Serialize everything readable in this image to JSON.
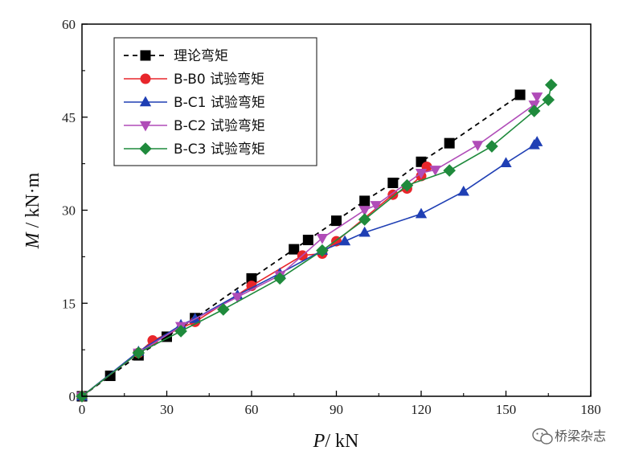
{
  "watermark": {
    "text": "桥梁杂志",
    "icon": "wechat-icon"
  },
  "chart_data": {
    "type": "line",
    "title": "",
    "xlabel": {
      "var": "P",
      "unit": "/ kN"
    },
    "ylabel": {
      "var": "M",
      "unit": " / kN·m"
    },
    "xlim": [
      0,
      180
    ],
    "ylim": [
      0,
      60
    ],
    "xticks": [
      0,
      30,
      60,
      90,
      120,
      150,
      180
    ],
    "yticks": [
      0,
      15,
      30,
      45,
      60
    ],
    "grid": false,
    "legend_position": "top-left",
    "series": [
      {
        "name": "理论弯矩",
        "color": "#000000",
        "marker": "square",
        "line": "dashed",
        "points": [
          [
            0,
            0
          ],
          [
            10,
            3.3
          ],
          [
            20,
            6.6
          ],
          [
            30,
            9.6
          ],
          [
            40,
            12.6
          ],
          [
            60,
            19
          ],
          [
            75,
            23.7
          ],
          [
            80,
            25.2
          ],
          [
            90,
            28.3
          ],
          [
            100,
            31.5
          ],
          [
            110,
            34.4
          ],
          [
            120,
            37.8
          ],
          [
            130,
            40.8
          ],
          [
            155,
            48.6
          ]
        ]
      },
      {
        "name": "B-B0 试验弯矩",
        "color": "#e8262b",
        "marker": "circle",
        "line": "solid",
        "points": [
          [
            0,
            0
          ],
          [
            20,
            7
          ],
          [
            25,
            9
          ],
          [
            40,
            12
          ],
          [
            60,
            17.8
          ],
          [
            78,
            22.7
          ],
          [
            85,
            23
          ],
          [
            90,
            25
          ],
          [
            110,
            32.5
          ],
          [
            115,
            33.5
          ],
          [
            120,
            35.5
          ],
          [
            122,
            37
          ]
        ]
      },
      {
        "name": "B-C1 试验弯矩",
        "color": "#1f3fb4",
        "marker": "triangle-up",
        "line": "solid",
        "points": [
          [
            0,
            0
          ],
          [
            20,
            7.2
          ],
          [
            35,
            11.5
          ],
          [
            40,
            12.5
          ],
          [
            55,
            16.3
          ],
          [
            70,
            19.8
          ],
          [
            85,
            23.5
          ],
          [
            93,
            25
          ],
          [
            100,
            26.4
          ],
          [
            120,
            29.4
          ],
          [
            135,
            33
          ],
          [
            150,
            37.6
          ],
          [
            160,
            40.5
          ],
          [
            161,
            41
          ]
        ]
      },
      {
        "name": "B-C2 试验弯矩",
        "color": "#b04cb8",
        "marker": "triangle-down",
        "line": "solid",
        "points": [
          [
            0,
            0
          ],
          [
            20,
            7
          ],
          [
            35,
            11.3
          ],
          [
            55,
            16
          ],
          [
            70,
            19.5
          ],
          [
            85,
            25.5
          ],
          [
            100,
            30
          ],
          [
            104,
            30.8
          ],
          [
            120,
            36
          ],
          [
            125,
            36.5
          ],
          [
            140,
            40.5
          ],
          [
            160,
            47
          ],
          [
            161,
            48.3
          ]
        ]
      },
      {
        "name": "B-C3 试验弯矩",
        "color": "#1f8a3c",
        "marker": "diamond",
        "line": "solid",
        "points": [
          [
            0,
            0
          ],
          [
            20,
            7
          ],
          [
            35,
            10.5
          ],
          [
            50,
            14
          ],
          [
            70,
            19
          ],
          [
            85,
            23.5
          ],
          [
            100,
            28.5
          ],
          [
            115,
            34
          ],
          [
            130,
            36.4
          ],
          [
            145,
            40.3
          ],
          [
            160,
            46
          ],
          [
            165,
            47.8
          ],
          [
            166,
            50.2
          ]
        ]
      }
    ]
  }
}
